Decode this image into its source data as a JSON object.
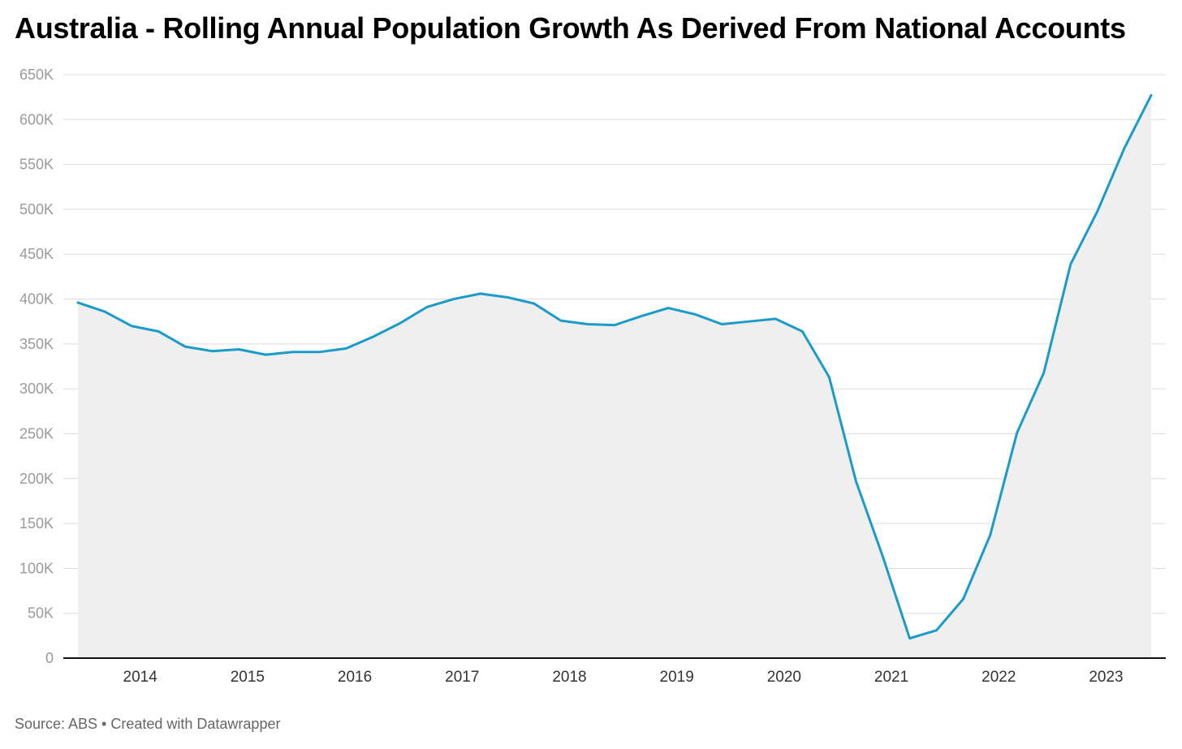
{
  "title": "Australia - Rolling Annual Population Growth As Derived From National Accounts",
  "footer": "Source: ABS • Created with Datawrapper",
  "colors": {
    "line": "#1a9bc9",
    "area": "#efefef",
    "grid": "#dcdcdc",
    "axis": "#111111"
  },
  "chart_data": {
    "type": "area",
    "title": "Australia - Rolling Annual Population Growth As Derived From National Accounts",
    "xlabel": "",
    "ylabel": "",
    "ylim": [
      0,
      650000
    ],
    "xlim": [
      2013.42,
      2023.42
    ],
    "grid": true,
    "y_ticks": [
      {
        "value": 0,
        "label": "0"
      },
      {
        "value": 50000,
        "label": "50K"
      },
      {
        "value": 100000,
        "label": "100K"
      },
      {
        "value": 150000,
        "label": "150K"
      },
      {
        "value": 200000,
        "label": "200K"
      },
      {
        "value": 250000,
        "label": "250K"
      },
      {
        "value": 300000,
        "label": "300K"
      },
      {
        "value": 350000,
        "label": "350K"
      },
      {
        "value": 400000,
        "label": "400K"
      },
      {
        "value": 450000,
        "label": "450K"
      },
      {
        "value": 500000,
        "label": "500K"
      },
      {
        "value": 550000,
        "label": "550K"
      },
      {
        "value": 600000,
        "label": "600K"
      },
      {
        "value": 650000,
        "label": "650K"
      }
    ],
    "x_ticks": [
      {
        "value": 2014,
        "label": "2014"
      },
      {
        "value": 2015,
        "label": "2015"
      },
      {
        "value": 2016,
        "label": "2016"
      },
      {
        "value": 2017,
        "label": "2017"
      },
      {
        "value": 2018,
        "label": "2018"
      },
      {
        "value": 2019,
        "label": "2019"
      },
      {
        "value": 2020,
        "label": "2020"
      },
      {
        "value": 2021,
        "label": "2021"
      },
      {
        "value": 2022,
        "label": "2022"
      },
      {
        "value": 2023,
        "label": "2023"
      }
    ],
    "x": [
      2013.42,
      2013.67,
      2013.92,
      2014.17,
      2014.42,
      2014.67,
      2014.92,
      2015.17,
      2015.42,
      2015.67,
      2015.92,
      2016.17,
      2016.42,
      2016.67,
      2016.92,
      2017.17,
      2017.42,
      2017.67,
      2017.92,
      2018.17,
      2018.42,
      2018.67,
      2018.92,
      2019.17,
      2019.42,
      2019.67,
      2019.92,
      2020.17,
      2020.42,
      2020.67,
      2020.92,
      2021.17,
      2021.42,
      2021.67,
      2021.92,
      2022.17,
      2022.42,
      2022.67,
      2022.92,
      2023.17,
      2023.42
    ],
    "series": [
      {
        "values": [
          396000,
          386000,
          370000,
          364000,
          347000,
          342000,
          344000,
          338000,
          341000,
          341000,
          345000,
          358000,
          373000,
          391000,
          400000,
          406000,
          402000,
          395000,
          376000,
          372000,
          371000,
          381000,
          390000,
          383000,
          372000,
          375000,
          378000,
          364000,
          313000,
          197000,
          113000,
          22000,
          31000,
          66000,
          137000,
          251000,
          318000,
          439000,
          498000,
          568000,
          627000
        ]
      }
    ]
  }
}
